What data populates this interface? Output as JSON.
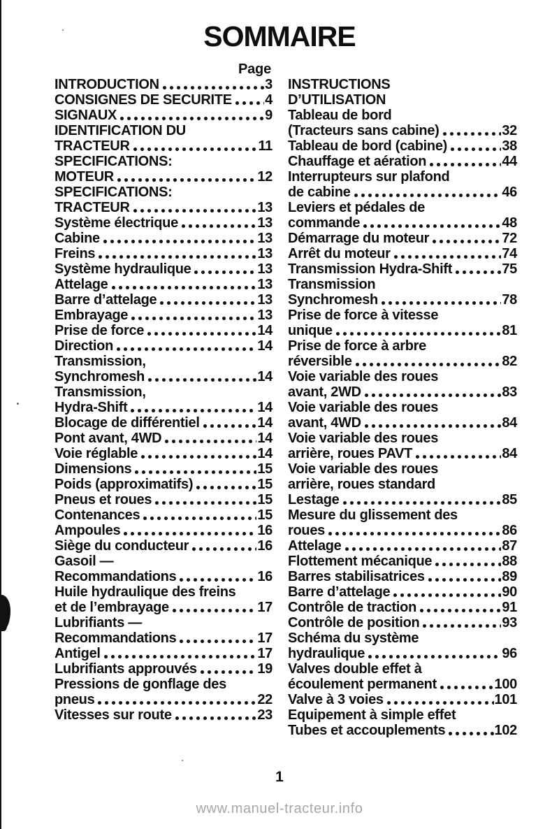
{
  "page": {
    "title": "SOMMAIRE",
    "column_header": "Page",
    "footer_page_number": "1",
    "watermark": "www.manuel-tracteur.info",
    "colors": {
      "text": "#0d0d0d",
      "watermark": "#a6a6a6",
      "background": "#ffffff"
    }
  },
  "toc": {
    "left": [
      {
        "lines": [
          "INTRODUCTION"
        ],
        "page": "3"
      },
      {
        "lines": [
          "CONSIGNES DE SECURITE"
        ],
        "page": "4"
      },
      {
        "lines": [
          "SIGNAUX"
        ],
        "page": "9"
      },
      {
        "lines": [
          "IDENTIFICATION DU",
          "TRACTEUR"
        ],
        "page": "11"
      },
      {
        "lines": [
          "SPECIFICATIONS:",
          "MOTEUR"
        ],
        "page": "12"
      },
      {
        "lines": [
          "SPECIFICATIONS:",
          "TRACTEUR"
        ],
        "page": "13"
      },
      {
        "lines": [
          "Système électrique"
        ],
        "page": "13"
      },
      {
        "lines": [
          "Cabine"
        ],
        "page": "13"
      },
      {
        "lines": [
          "Freins"
        ],
        "page": "13"
      },
      {
        "lines": [
          "Système hydraulique"
        ],
        "page": "13"
      },
      {
        "lines": [
          "Attelage"
        ],
        "page": "13"
      },
      {
        "lines": [
          "Barre d’attelage"
        ],
        "page": "13"
      },
      {
        "lines": [
          "Embrayage"
        ],
        "page": "13"
      },
      {
        "lines": [
          "Prise de force"
        ],
        "page": "14"
      },
      {
        "lines": [
          "Direction"
        ],
        "page": "14"
      },
      {
        "lines": [
          "Transmission,",
          "Synchromesh"
        ],
        "page": "14"
      },
      {
        "lines": [
          "Transmission,",
          "Hydra-Shift"
        ],
        "page": "14"
      },
      {
        "lines": [
          "Blocage de différentiel"
        ],
        "page": "14"
      },
      {
        "lines": [
          "Pont avant, 4WD"
        ],
        "page": "14"
      },
      {
        "lines": [
          "Voie réglable"
        ],
        "page": "14"
      },
      {
        "lines": [
          "Dimensions"
        ],
        "page": "15"
      },
      {
        "lines": [
          "Poids (approximatifs)"
        ],
        "page": "15"
      },
      {
        "lines": [
          "Pneus et roues"
        ],
        "page": "15"
      },
      {
        "lines": [
          "Contenances"
        ],
        "page": "15"
      },
      {
        "lines": [
          "Ampoules"
        ],
        "page": "16"
      },
      {
        "lines": [
          "Siège du conducteur"
        ],
        "page": "16"
      },
      {
        "lines": [
          "Gasoil —",
          "Recommandations"
        ],
        "page": "16"
      },
      {
        "lines": [
          "Huile hydraulique des freins",
          "et de l’embrayage"
        ],
        "page": "17"
      },
      {
        "lines": [
          "Lubrifiants —",
          "Recommandations"
        ],
        "page": "17"
      },
      {
        "lines": [
          "Antigel"
        ],
        "page": "17"
      },
      {
        "lines": [
          "Lubrifiants approuvés"
        ],
        "page": "19"
      },
      {
        "lines": [
          "Pressions de gonflage des",
          "pneus"
        ],
        "page": "22"
      },
      {
        "lines": [
          "Vitesses sur route"
        ],
        "page": "23"
      }
    ],
    "right": [
      {
        "lines": [
          "INSTRUCTIONS",
          "D’UTILISATION"
        ],
        "page": null
      },
      {
        "lines": [
          "Tableau de bord",
          "(Tracteurs sans cabine)"
        ],
        "page": "32"
      },
      {
        "lines": [
          "Tableau de bord (cabine)"
        ],
        "page": "38"
      },
      {
        "lines": [
          "Chauffage et aération"
        ],
        "page": "44"
      },
      {
        "lines": [
          "Interrupteurs sur plafond",
          "de cabine"
        ],
        "page": "46"
      },
      {
        "lines": [
          "Leviers et pédales de",
          "commande"
        ],
        "page": "48"
      },
      {
        "lines": [
          "Démarrage du moteur"
        ],
        "page": "72"
      },
      {
        "lines": [
          "Arrêt du moteur"
        ],
        "page": "74"
      },
      {
        "lines": [
          "Transmission Hydra-Shift"
        ],
        "page": "75"
      },
      {
        "lines": [
          "Transmission",
          "Synchromesh"
        ],
        "page": "78"
      },
      {
        "lines": [
          "Prise de force à vitesse",
          "unique"
        ],
        "page": "81"
      },
      {
        "lines": [
          "Prise de force à arbre",
          "réversible"
        ],
        "page": "82"
      },
      {
        "lines": [
          "Voie variable des roues",
          "avant, 2WD"
        ],
        "page": "83"
      },
      {
        "lines": [
          "Voie variable des roues",
          "avant, 4WD"
        ],
        "page": "84"
      },
      {
        "lines": [
          "Voie variable des roues",
          "arrière, roues PAVT"
        ],
        "page": "84"
      },
      {
        "lines": [
          "Voie variable des roues",
          "arrière, roues standard"
        ],
        "page": null
      },
      {
        "lines": [
          "Lestage"
        ],
        "page": "85"
      },
      {
        "lines": [
          "Mesure du glissement des",
          "roues"
        ],
        "page": "86"
      },
      {
        "lines": [
          "Attelage"
        ],
        "page": "87"
      },
      {
        "lines": [
          "Flottement mécanique"
        ],
        "page": "88"
      },
      {
        "lines": [
          "Barres stabilisatrices"
        ],
        "page": "89"
      },
      {
        "lines": [
          "Barre d’attelage"
        ],
        "page": "90"
      },
      {
        "lines": [
          "Contrôle de traction"
        ],
        "page": "91"
      },
      {
        "lines": [
          "Contrôle de position"
        ],
        "page": "93"
      },
      {
        "lines": [
          "Schéma du système",
          "hydraulique"
        ],
        "page": "96"
      },
      {
        "lines": [
          "Valves double effet à",
          "écoulement permanent"
        ],
        "page": "100"
      },
      {
        "lines": [
          "Valve à 3 voies"
        ],
        "page": "101"
      },
      {
        "lines": [
          "Equipement à simple effet",
          "Tubes et accouplements"
        ],
        "page": "102"
      }
    ]
  }
}
